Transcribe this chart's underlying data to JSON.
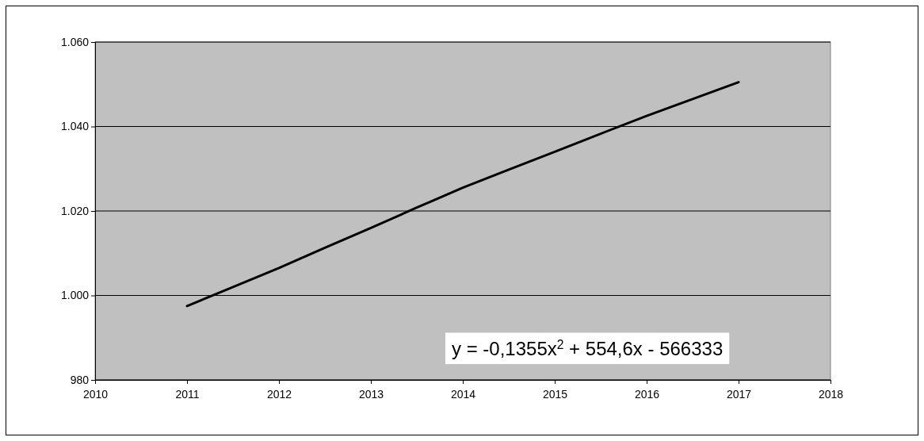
{
  "chart_data": {
    "type": "line",
    "x": [
      2011,
      2011.5,
      2012,
      2012.5,
      2013,
      2013.5,
      2014,
      2014.5,
      2015,
      2015.5,
      2016,
      2016.5,
      2017
    ],
    "series": [
      {
        "color": "#000000",
        "values": [
          997.5,
          1002,
          1006.5,
          1011.3,
          1016,
          1020.8,
          1025.5,
          1029.8,
          1034,
          1038.3,
          1042.5,
          1046.5,
          1050.5
        ]
      }
    ],
    "xlim": [
      2010,
      2018
    ],
    "xticks": [
      2010,
      2011,
      2012,
      2013,
      2014,
      2015,
      2016,
      2017,
      2018
    ],
    "ylim": [
      980,
      1060
    ],
    "yticks": [
      980,
      {
        "value": 1000,
        "label": "1.000"
      },
      {
        "value": 1020,
        "label": "1.020"
      },
      {
        "value": 1040,
        "label": "1.040"
      },
      {
        "value": 1060,
        "label": "1.060"
      }
    ],
    "grid": "y",
    "marker": "none",
    "line_style": "solid",
    "annotations": [
      "y = -0,1355x$^{2}$ + 554,6x - 566333"
    ]
  }
}
